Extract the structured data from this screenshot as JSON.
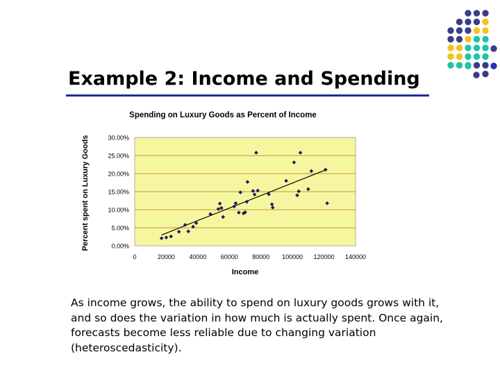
{
  "slide": {
    "title": "Example 2: Income and Spending",
    "body": "As income grows, the ability to spend on luxury goods grows with it, and so does the variation in how much is actually spent. Once again, forecasts become less reliable due to changing variation (heteroscedasticity)."
  },
  "decoration": {
    "colors": {
      "purple": "#3a3c8c",
      "yellow": "#f3c31a",
      "teal": "#1fc4a6",
      "blue": "#2b2fb4",
      "title_rule": "#1f2a9c"
    }
  },
  "chart_data": {
    "type": "scatter",
    "title": "Spending on Luxury Goods as Percent of Income",
    "xlabel": "Income",
    "ylabel": "Percent spent on Luxury Goods",
    "xlim": [
      0,
      140000
    ],
    "ylim": [
      0,
      0.3
    ],
    "x_ticks": [
      "0",
      "20000",
      "40000",
      "60000",
      "80000",
      "100000",
      "120000",
      "140000"
    ],
    "y_ticks": [
      "0.00%",
      "5.00%",
      "10.00%",
      "15.00%",
      "20.00%",
      "25.00%",
      "30.00%"
    ],
    "plot_background": "#f6f6a0",
    "gridlines": "horizontal",
    "marker": "diamond",
    "marker_color": "#1a1a5c",
    "trendline": {
      "type": "linear",
      "x": [
        17000,
        122000
      ],
      "y": [
        0.03,
        0.212
      ]
    },
    "points": [
      {
        "x": 17000,
        "y": 0.021
      },
      {
        "x": 20000,
        "y": 0.023
      },
      {
        "x": 23000,
        "y": 0.026
      },
      {
        "x": 28000,
        "y": 0.039
      },
      {
        "x": 32000,
        "y": 0.058
      },
      {
        "x": 34000,
        "y": 0.04
      },
      {
        "x": 37000,
        "y": 0.053
      },
      {
        "x": 39000,
        "y": 0.063
      },
      {
        "x": 48000,
        "y": 0.088
      },
      {
        "x": 53000,
        "y": 0.102
      },
      {
        "x": 54000,
        "y": 0.117
      },
      {
        "x": 55000,
        "y": 0.105
      },
      {
        "x": 56000,
        "y": 0.08
      },
      {
        "x": 63000,
        "y": 0.109
      },
      {
        "x": 64000,
        "y": 0.118
      },
      {
        "x": 66000,
        "y": 0.092
      },
      {
        "x": 67000,
        "y": 0.148
      },
      {
        "x": 69000,
        "y": 0.09
      },
      {
        "x": 70000,
        "y": 0.093
      },
      {
        "x": 71000,
        "y": 0.122
      },
      {
        "x": 71500,
        "y": 0.177
      },
      {
        "x": 75000,
        "y": 0.152
      },
      {
        "x": 76000,
        "y": 0.142
      },
      {
        "x": 77000,
        "y": 0.258
      },
      {
        "x": 78000,
        "y": 0.153
      },
      {
        "x": 85000,
        "y": 0.143
      },
      {
        "x": 87000,
        "y": 0.115
      },
      {
        "x": 87500,
        "y": 0.106
      },
      {
        "x": 96000,
        "y": 0.18
      },
      {
        "x": 101000,
        "y": 0.231
      },
      {
        "x": 103000,
        "y": 0.14
      },
      {
        "x": 104000,
        "y": 0.151
      },
      {
        "x": 105000,
        "y": 0.258
      },
      {
        "x": 110000,
        "y": 0.157
      },
      {
        "x": 112000,
        "y": 0.207
      },
      {
        "x": 121000,
        "y": 0.211
      },
      {
        "x": 122000,
        "y": 0.118
      }
    ]
  }
}
